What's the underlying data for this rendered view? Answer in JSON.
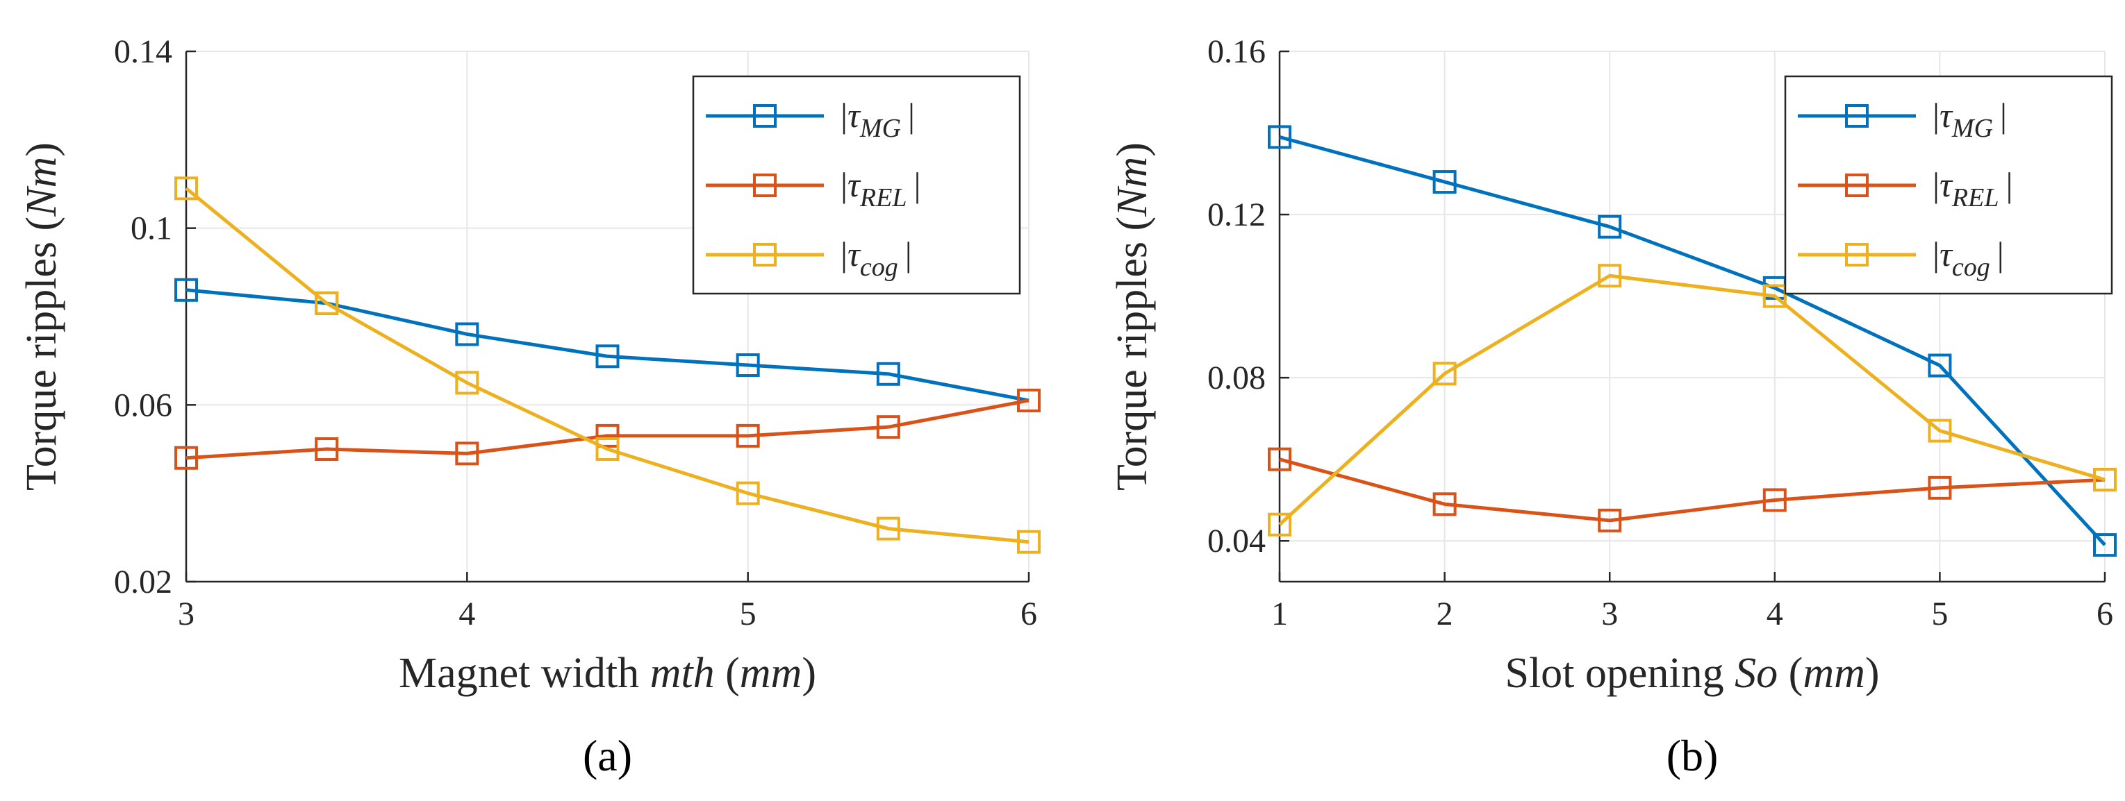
{
  "chart_data": [
    {
      "type": "line",
      "caption": "(a)",
      "xlabel": "Magnet width mth (mm)",
      "xlabel_parts": [
        "Magnet width ",
        "mth",
        " (",
        "mm",
        ")"
      ],
      "ylabel": "Torque ripples (Nm)",
      "ylabel_parts": [
        "Torque ripples (",
        "Nm",
        ")"
      ],
      "xlim": [
        3,
        6
      ],
      "ylim": [
        0.02,
        0.14
      ],
      "xticks": [
        3,
        4,
        5,
        6
      ],
      "xtick_labels": [
        "3",
        "4",
        "5",
        "6"
      ],
      "yticks": [
        0.02,
        0.06,
        0.1,
        0.14
      ],
      "ytick_labels": [
        "0.02",
        "0.06",
        "0.1",
        "0.14"
      ],
      "grid": true,
      "legend_position": "top-right",
      "series": [
        {
          "name": "|τMG|",
          "tau": "τ",
          "sub": "MG",
          "color": "#0072BD",
          "x": [
            3,
            3.5,
            4,
            4.5,
            5,
            5.5,
            6
          ],
          "y": [
            0.086,
            0.083,
            0.076,
            0.071,
            0.069,
            0.067,
            0.061
          ]
        },
        {
          "name": "|τREL|",
          "tau": "τ",
          "sub": "REL",
          "color": "#D95319",
          "x": [
            3,
            3.5,
            4,
            4.5,
            5,
            5.5,
            6
          ],
          "y": [
            0.048,
            0.05,
            0.049,
            0.053,
            0.053,
            0.055,
            0.061
          ]
        },
        {
          "name": "|τcog|",
          "tau": "τ",
          "sub": "cog",
          "color": "#EDB120",
          "x": [
            3,
            3.5,
            4,
            4.5,
            5,
            5.5,
            6
          ],
          "y": [
            0.109,
            0.083,
            0.065,
            0.05,
            0.04,
            0.032,
            0.029
          ]
        }
      ]
    },
    {
      "type": "line",
      "caption": "(b)",
      "xlabel": "Slot opening So (mm)",
      "xlabel_parts": [
        "Slot opening ",
        "So",
        " (",
        "mm",
        ")"
      ],
      "ylabel": "Torque ripples (Nm)",
      "ylabel_parts": [
        "Torque ripples (",
        "Nm",
        ")"
      ],
      "xlim": [
        1,
        6
      ],
      "ylim": [
        0.03,
        0.16
      ],
      "xticks": [
        1,
        2,
        3,
        4,
        5,
        6
      ],
      "xtick_labels": [
        "1",
        "2",
        "3",
        "4",
        "5",
        "6"
      ],
      "yticks": [
        0.04,
        0.08,
        0.12,
        0.16
      ],
      "ytick_labels": [
        "0.04",
        "0.08",
        "0.12",
        "0.16"
      ],
      "grid": true,
      "legend_position": "top-right",
      "series": [
        {
          "name": "|τMG|",
          "tau": "τ",
          "sub": "MG",
          "color": "#0072BD",
          "x": [
            1,
            2,
            3,
            4,
            5,
            6
          ],
          "y": [
            0.139,
            0.128,
            0.117,
            0.102,
            0.083,
            0.039
          ]
        },
        {
          "name": "|τREL|",
          "tau": "τ",
          "sub": "REL",
          "color": "#D95319",
          "x": [
            1,
            2,
            3,
            4,
            5,
            6
          ],
          "y": [
            0.06,
            0.049,
            0.045,
            0.05,
            0.053,
            0.055
          ]
        },
        {
          "name": "|τcog|",
          "tau": "τ",
          "sub": "cog",
          "color": "#EDB120",
          "x": [
            1,
            2,
            3,
            4,
            5,
            6
          ],
          "y": [
            0.044,
            0.081,
            0.105,
            0.1,
            0.067,
            0.055
          ]
        }
      ]
    }
  ]
}
